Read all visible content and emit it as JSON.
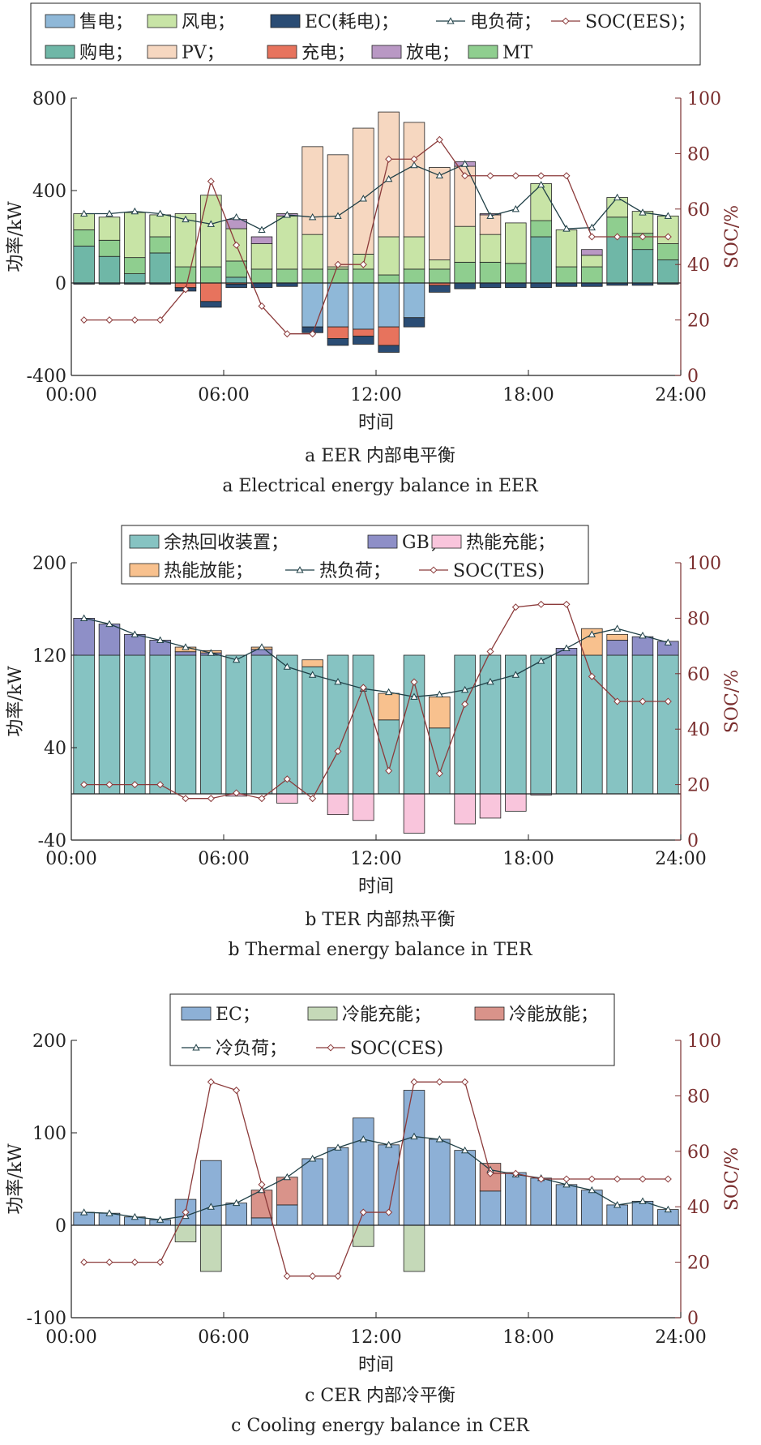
{
  "chart_data": [
    {
      "type": "bar",
      "id": "a",
      "stacked": true,
      "x_time_labels": [
        "00:00",
        "06:00",
        "12:00",
        "18:00",
        "24:00"
      ],
      "time_slots": [
        "00:30",
        "01:30",
        "02:30",
        "03:30",
        "04:30",
        "05:30",
        "06:30",
        "07:30",
        "08:30",
        "09:30",
        "10:30",
        "11:30",
        "12:30",
        "13:30",
        "14:30",
        "15:30",
        "16:30",
        "17:30",
        "18:30",
        "19:30",
        "20:30",
        "21:30",
        "22:30",
        "23:30"
      ],
      "xlabel": "时间",
      "ylabel": "功率/kW",
      "y2label": "SOC/%",
      "ylim": [
        -400,
        800
      ],
      "yticks": [
        -400,
        0,
        400,
        800
      ],
      "y2lim": [
        0,
        100
      ],
      "y2ticks": [
        0,
        20,
        40,
        60,
        80,
        100
      ],
      "caption_cn": "a EER 内部电平衡",
      "caption_en": "a Electrical energy balance in EER",
      "legend": [
        [
          {
            "key": "sell",
            "label": "售电；"
          },
          {
            "key": "wind",
            "label": "风电；"
          },
          {
            "key": "ec",
            "label": "EC(耗电)；"
          },
          {
            "key": "load",
            "label": "电负荷；"
          },
          {
            "key": "soc",
            "label": "SOC(EES)；"
          }
        ],
        [
          {
            "key": "buy",
            "label": "购电；"
          },
          {
            "key": "pv",
            "label": "PV；"
          },
          {
            "key": "charge",
            "label": "充电；"
          },
          {
            "key": "discharge",
            "label": "放电；"
          },
          {
            "key": "mt",
            "label": "MT"
          }
        ]
      ],
      "colors": {
        "sell": "#8fb8d8",
        "wind": "#c8e4a6",
        "ec": "#2a4c74",
        "buy": "#6fb7a7",
        "pv": "#f6d7c0",
        "charge": "#e7735d",
        "discharge": "#b998c4",
        "mt": "#8fce8f",
        "load": "#1f3f46",
        "soc": "#8b3a3a"
      },
      "positive_series": [
        {
          "key": "buy",
          "values": [
            160,
            115,
            40,
            130,
            0,
            0,
            25,
            0,
            0,
            0,
            0,
            0,
            0,
            0,
            0,
            0,
            0,
            0,
            200,
            0,
            0,
            200,
            145,
            100
          ]
        },
        {
          "key": "mt",
          "values": [
            70,
            70,
            70,
            70,
            70,
            70,
            70,
            60,
            60,
            60,
            60,
            60,
            35,
            60,
            60,
            90,
            90,
            85,
            70,
            70,
            70,
            85,
            70,
            70
          ]
        },
        {
          "key": "wind",
          "values": [
            70,
            100,
            195,
            95,
            230,
            310,
            140,
            110,
            230,
            150,
            10,
            65,
            165,
            140,
            40,
            155,
            120,
            175,
            160,
            160,
            50,
            85,
            95,
            120
          ]
        },
        {
          "key": "pv",
          "values": [
            0,
            0,
            0,
            0,
            0,
            0,
            0,
            0,
            0,
            380,
            485,
            545,
            540,
            495,
            400,
            260,
            85,
            0,
            0,
            0,
            0,
            0,
            0,
            0
          ]
        },
        {
          "key": "discharge",
          "values": [
            0,
            0,
            0,
            0,
            0,
            0,
            40,
            30,
            10,
            0,
            0,
            0,
            0,
            0,
            0,
            20,
            5,
            0,
            0,
            0,
            25,
            0,
            0,
            0
          ]
        }
      ],
      "negative_series": [
        {
          "key": "sell",
          "values": [
            0,
            0,
            0,
            0,
            0,
            0,
            0,
            0,
            0,
            -190,
            -190,
            -200,
            -190,
            -150,
            0,
            0,
            0,
            0,
            0,
            0,
            0,
            0,
            0,
            0
          ]
        },
        {
          "key": "charge",
          "values": [
            0,
            0,
            0,
            0,
            -20,
            -80,
            -5,
            0,
            0,
            0,
            -50,
            -30,
            -80,
            0,
            -10,
            0,
            0,
            0,
            0,
            0,
            0,
            0,
            0,
            0
          ]
        },
        {
          "key": "ec",
          "values": [
            -5,
            -5,
            -5,
            -5,
            -15,
            -25,
            -15,
            -20,
            -15,
            -25,
            -30,
            -35,
            -30,
            -40,
            -30,
            -25,
            -20,
            -20,
            -20,
            -15,
            -15,
            -10,
            -10,
            -5
          ]
        }
      ],
      "line_series": [
        {
          "key": "load",
          "axis": "left",
          "marker": "triangle",
          "values": [
            300,
            300,
            310,
            300,
            275,
            255,
            285,
            230,
            295,
            285,
            290,
            365,
            450,
            510,
            465,
            515,
            290,
            320,
            425,
            235,
            240,
            370,
            305,
            290
          ]
        },
        {
          "key": "soc",
          "axis": "right",
          "marker": "diamond",
          "values": [
            20,
            20,
            20,
            20,
            31,
            70,
            47,
            25,
            15,
            15,
            40,
            40,
            78,
            78,
            85,
            72,
            72,
            72,
            72,
            72,
            50,
            50,
            50,
            50
          ]
        }
      ]
    },
    {
      "type": "bar",
      "id": "b",
      "stacked": true,
      "x_time_labels": [
        "00:00",
        "06:00",
        "12:00",
        "18:00",
        "24:00"
      ],
      "xlabel": "时间",
      "ylabel": "功率/kW",
      "y2label": "SOC/%",
      "ylim": [
        -40,
        200
      ],
      "yticks": [
        -40,
        40,
        120,
        200
      ],
      "y2lim": [
        0,
        100
      ],
      "y2ticks": [
        0,
        20,
        40,
        60,
        80,
        100
      ],
      "caption_cn": "b TER 内部热平衡",
      "caption_en": "b Thermal energy balance in TER",
      "legend": [
        [
          {
            "key": "whr",
            "label": "余热回收装置；"
          },
          {
            "key": "gb",
            "label": "GB；"
          },
          {
            "key": "charge",
            "label": "热能充能；"
          }
        ],
        [
          {
            "key": "discharge",
            "label": "热能放能；"
          },
          {
            "key": "load",
            "label": "热负荷；"
          },
          {
            "key": "soc",
            "label": "SOC(TES)"
          }
        ]
      ],
      "colors": {
        "whr": "#86c3c2",
        "gb": "#8e8fc7",
        "charge": "#f9c5dc",
        "discharge": "#f8c18e",
        "load": "#1f3f46",
        "soc": "#8b3a3a"
      },
      "positive_series": [
        {
          "key": "whr",
          "values": [
            120,
            120,
            120,
            120,
            120,
            120,
            120,
            120,
            120,
            110,
            120,
            120,
            64,
            120,
            57,
            120,
            120,
            120,
            120,
            120,
            120,
            120,
            120,
            120
          ]
        },
        {
          "key": "gb",
          "values": [
            32,
            27,
            18,
            13,
            3,
            2,
            0,
            5,
            0,
            0,
            0,
            0,
            0,
            0,
            0,
            0,
            0,
            0,
            0,
            6,
            0,
            13,
            16,
            12
          ]
        },
        {
          "key": "discharge",
          "values": [
            0,
            0,
            0,
            0,
            4,
            2,
            0,
            2,
            0,
            6,
            0,
            0,
            23,
            0,
            27,
            0,
            0,
            0,
            0,
            0,
            23,
            5,
            0,
            0
          ]
        }
      ],
      "negative_series": [
        {
          "key": "charge",
          "values": [
            0,
            0,
            0,
            0,
            0,
            0,
            -2,
            0,
            -8,
            0,
            -18,
            -23,
            0,
            -34,
            0,
            -26,
            -21,
            -15,
            -1,
            0,
            0,
            0,
            0,
            0
          ]
        }
      ],
      "line_series": [
        {
          "key": "load",
          "axis": "left",
          "marker": "triangle",
          "values": [
            152,
            147,
            138,
            133,
            127,
            122,
            116,
            127,
            110,
            103,
            97,
            91,
            88,
            84,
            86,
            90,
            97,
            103,
            115,
            126,
            138,
            143,
            137,
            131
          ]
        },
        {
          "key": "soc",
          "axis": "right",
          "marker": "diamond",
          "values": [
            20,
            20,
            20,
            20,
            15,
            15,
            17,
            15,
            22,
            15,
            32,
            55,
            25,
            57,
            24,
            49,
            68,
            84,
            85,
            85,
            59,
            50,
            50,
            50
          ]
        }
      ]
    },
    {
      "type": "bar",
      "id": "c",
      "stacked": true,
      "x_time_labels": [
        "00:00",
        "06:00",
        "12:00",
        "18:00",
        "24:00"
      ],
      "xlabel": "时间",
      "ylabel": "功率/kW",
      "y2label": "SOC/%",
      "ylim": [
        -100,
        200
      ],
      "yticks": [
        -100,
        0,
        100,
        200
      ],
      "y2lim": [
        0,
        100
      ],
      "y2ticks": [
        0,
        20,
        40,
        60,
        80,
        100
      ],
      "caption_cn": "c CER 内部冷平衡",
      "caption_en": "c Cooling energy balance in CER",
      "legend": [
        [
          {
            "key": "ec",
            "label": "EC；"
          },
          {
            "key": "charge",
            "label": "冷能充能；"
          },
          {
            "key": "discharge",
            "label": "冷能放能；"
          }
        ],
        [
          {
            "key": "load",
            "label": "冷负荷；"
          },
          {
            "key": "soc",
            "label": "SOC(CES)"
          }
        ]
      ],
      "colors": {
        "ec": "#8db0d6",
        "charge": "#c5d9b8",
        "discharge": "#d9938a",
        "load": "#1f3f46",
        "soc": "#8b3a3a"
      },
      "positive_series": [
        {
          "key": "ec",
          "values": [
            14,
            13,
            9,
            6,
            28,
            70,
            24,
            8,
            22,
            72,
            84,
            116,
            87,
            146,
            93,
            81,
            37,
            57,
            51,
            44,
            38,
            22,
            26,
            17
          ]
        },
        {
          "key": "discharge",
          "values": [
            0,
            0,
            0,
            0,
            0,
            0,
            0,
            30,
            30,
            0,
            0,
            0,
            0,
            0,
            0,
            0,
            30,
            0,
            0,
            0,
            0,
            0,
            0,
            0
          ]
        }
      ],
      "negative_series": [
        {
          "key": "charge",
          "values": [
            0,
            0,
            0,
            0,
            -18,
            -50,
            0,
            0,
            0,
            0,
            0,
            -23,
            0,
            -50,
            0,
            0,
            0,
            0,
            0,
            0,
            0,
            0,
            0,
            0
          ]
        }
      ],
      "line_series": [
        {
          "key": "load",
          "axis": "left",
          "marker": "triangle",
          "values": [
            14,
            13,
            9,
            6,
            10,
            20,
            24,
            38,
            52,
            72,
            84,
            93,
            87,
            96,
            93,
            81,
            60,
            55,
            51,
            44,
            38,
            22,
            26,
            17
          ]
        },
        {
          "key": "soc",
          "axis": "right",
          "marker": "diamond",
          "values": [
            20,
            20,
            20,
            20,
            38,
            85,
            82,
            48,
            15,
            15,
            15,
            38,
            38,
            85,
            85,
            85,
            52,
            52,
            50,
            50,
            50,
            50,
            50,
            50
          ]
        }
      ]
    }
  ]
}
